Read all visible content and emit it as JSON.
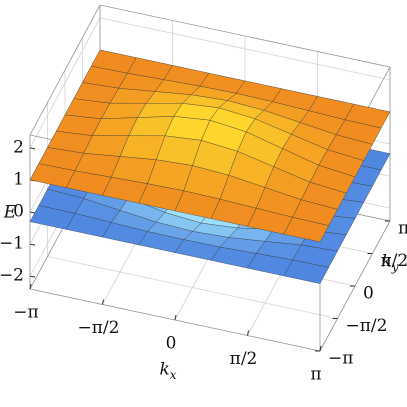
{
  "chart_data": {
    "type": "surface",
    "xlabel": "kx",
    "ylabel": "ky",
    "zlabel": "E",
    "x": [
      -3.1416,
      -2.3562,
      -1.5708,
      -0.7854,
      0,
      0.7854,
      1.5708,
      2.3562,
      3.1416
    ],
    "y": [
      -3.1416,
      -2.3562,
      -1.5708,
      -0.7854,
      0,
      0.7854,
      1.5708,
      2.3562,
      3.1416
    ],
    "xlim": [
      -3.1416,
      3.1416
    ],
    "ylim": [
      -3.1416,
      3.1416
    ],
    "zlim": [
      -2.4,
      2.4
    ],
    "xticks": [
      {
        "value": -3.1416,
        "label": "−π"
      },
      {
        "value": -1.5708,
        "label": "−π/2"
      },
      0,
      {
        "value": 1.5708,
        "label": "π/2"
      },
      {
        "value": 3.1416,
        "label": "π"
      }
    ],
    "yticks": [
      {
        "value": -3.1416,
        "label": "−π"
      },
      {
        "value": -1.5708,
        "label": "−π/2"
      },
      0,
      {
        "value": 1.5708,
        "label": "π/2"
      },
      {
        "value": 3.1416,
        "label": "π"
      }
    ],
    "zticks": [
      {
        "value": -2,
        "label": "−2"
      },
      {
        "value": -1,
        "label": "−1"
      },
      0,
      1,
      2
    ],
    "grid": true,
    "series": [
      {
        "color": "#4f86e0",
        "highlight": "#a8ecff",
        "values": [
          [
            -0.3,
            -0.3,
            -0.3,
            -0.3,
            -0.3,
            -0.3,
            -0.3,
            -0.3,
            -0.3
          ],
          [
            -0.3,
            -0.31,
            -0.35,
            -0.39,
            -0.4,
            -0.39,
            -0.35,
            -0.31,
            -0.3
          ],
          [
            -0.3,
            -0.35,
            -0.48,
            -0.6,
            -0.65,
            -0.6,
            -0.48,
            -0.35,
            -0.3
          ],
          [
            -0.3,
            -0.39,
            -0.6,
            -0.81,
            -0.9,
            -0.81,
            -0.6,
            -0.39,
            -0.3
          ],
          [
            -0.3,
            -0.4,
            -0.65,
            -0.9,
            -1.0,
            -0.9,
            -0.65,
            -0.4,
            -0.3
          ],
          [
            -0.3,
            -0.39,
            -0.6,
            -0.81,
            -0.9,
            -0.81,
            -0.6,
            -0.39,
            -0.3
          ],
          [
            -0.3,
            -0.35,
            -0.48,
            -0.6,
            -0.65,
            -0.6,
            -0.48,
            -0.35,
            -0.3
          ],
          [
            -0.3,
            -0.31,
            -0.35,
            -0.39,
            -0.4,
            -0.39,
            -0.35,
            -0.31,
            -0.3
          ],
          [
            -0.3,
            -0.3,
            -0.3,
            -0.3,
            -0.3,
            -0.3,
            -0.3,
            -0.3,
            -0.3
          ]
        ]
      },
      {
        "color": "#f08a20",
        "highlight": "#ffe22e",
        "values": [
          [
            1,
            1,
            1,
            1,
            1,
            1,
            1,
            1,
            1
          ],
          [
            1,
            1.02,
            1.06,
            1.1,
            1.12,
            1.1,
            1.06,
            1.02,
            1
          ],
          [
            1,
            1.06,
            1.2,
            1.34,
            1.4,
            1.34,
            1.2,
            1.06,
            1
          ],
          [
            1,
            1.1,
            1.34,
            1.58,
            1.68,
            1.58,
            1.34,
            1.1,
            1
          ],
          [
            1,
            1.12,
            1.4,
            1.68,
            1.8,
            1.68,
            1.4,
            1.12,
            1
          ],
          [
            1,
            1.1,
            1.34,
            1.58,
            1.68,
            1.58,
            1.34,
            1.1,
            1
          ],
          [
            1,
            1.06,
            1.2,
            1.34,
            1.4,
            1.34,
            1.2,
            1.06,
            1
          ],
          [
            1,
            1.02,
            1.06,
            1.1,
            1.12,
            1.1,
            1.06,
            1.02,
            1
          ],
          [
            1,
            1,
            1,
            1,
            1,
            1,
            1,
            1,
            1
          ]
        ]
      }
    ]
  }
}
